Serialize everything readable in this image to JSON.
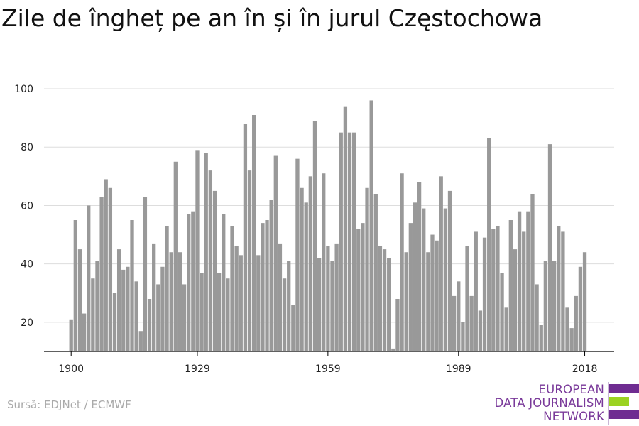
{
  "title": "Zile de îngheț pe an în și în jurul Częstochowa",
  "source": "Sursă: EDJNet / ECMWF",
  "logo": {
    "lines": [
      "EUROPEAN",
      "DATA JOURNALISM",
      "NETWORK"
    ],
    "colors": {
      "purple": "#6f2c91",
      "green": "#9bd321"
    }
  },
  "colors": {
    "bar": "#999999",
    "grid": "#dddddd",
    "axis": "#000000"
  },
  "chart_data": {
    "type": "bar",
    "title": "Zile de îngheț pe an în și în jurul Częstochowa",
    "xlabel": "",
    "ylabel": "",
    "ylim": [
      10,
      100
    ],
    "grid": true,
    "y_ticks": [
      20,
      40,
      60,
      80,
      100
    ],
    "x_ticks": [
      1900,
      1929,
      1959,
      1989,
      2018
    ],
    "categories": [
      1900,
      1901,
      1902,
      1903,
      1904,
      1905,
      1906,
      1907,
      1908,
      1909,
      1910,
      1911,
      1912,
      1913,
      1914,
      1915,
      1916,
      1917,
      1918,
      1919,
      1920,
      1921,
      1922,
      1923,
      1924,
      1925,
      1926,
      1927,
      1928,
      1929,
      1930,
      1931,
      1932,
      1933,
      1934,
      1935,
      1936,
      1937,
      1938,
      1939,
      1940,
      1941,
      1942,
      1943,
      1944,
      1945,
      1946,
      1947,
      1948,
      1949,
      1950,
      1951,
      1952,
      1953,
      1954,
      1955,
      1956,
      1957,
      1958,
      1959,
      1960,
      1961,
      1962,
      1963,
      1964,
      1965,
      1966,
      1967,
      1968,
      1969,
      1970,
      1971,
      1972,
      1973,
      1974,
      1975,
      1976,
      1977,
      1978,
      1979,
      1980,
      1981,
      1982,
      1983,
      1984,
      1985,
      1986,
      1987,
      1988,
      1989,
      1990,
      1991,
      1992,
      1993,
      1994,
      1995,
      1996,
      1997,
      1998,
      1999,
      2000,
      2001,
      2002,
      2003,
      2004,
      2005,
      2006,
      2007,
      2008,
      2009,
      2010,
      2011,
      2012,
      2013,
      2014,
      2015,
      2016,
      2017,
      2018
    ],
    "values": [
      21,
      55,
      45,
      23,
      60,
      35,
      41,
      63,
      69,
      66,
      30,
      45,
      38,
      39,
      55,
      34,
      17,
      63,
      28,
      47,
      33,
      39,
      53,
      44,
      75,
      44,
      33,
      57,
      58,
      79,
      37,
      78,
      72,
      65,
      37,
      57,
      35,
      53,
      46,
      43,
      88,
      72,
      91,
      43,
      54,
      55,
      62,
      77,
      47,
      35,
      41,
      26,
      76,
      66,
      61,
      70,
      89,
      42,
      71,
      46,
      41,
      47,
      85,
      94,
      85,
      85,
      52,
      54,
      66,
      96,
      64,
      46,
      45,
      42,
      11,
      28,
      71,
      44,
      54,
      61,
      68,
      59,
      44,
      50,
      48,
      70,
      59,
      65,
      29,
      34,
      20,
      46,
      29,
      51,
      24,
      49,
      83,
      52,
      53,
      37,
      25,
      55,
      45,
      58,
      51,
      58,
      64,
      33,
      19,
      41,
      81,
      41,
      53,
      51,
      25,
      18,
      29,
      39,
      44
    ]
  }
}
